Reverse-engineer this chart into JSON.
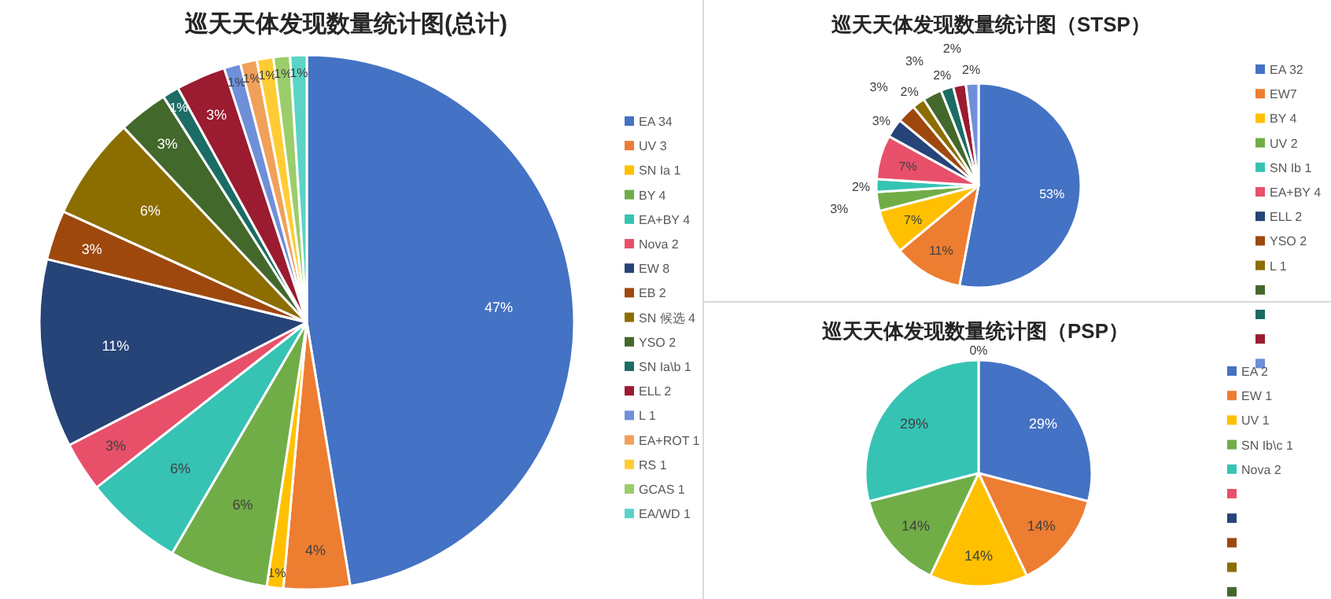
{
  "chart_data": [
    {
      "type": "pie",
      "title": "巡天天体发现数量统计图(总计)",
      "legend": "right",
      "categories": [
        "EA 34",
        "UV 3",
        "SN Ia 1",
        "BY  4",
        "EA+BY 4",
        "Nova 2",
        "EW 8",
        "EB  2",
        "SN 候选 4",
        "YSO 2",
        "SN Ia\\b 1",
        "ELL 2",
        "L  1",
        "EA+ROT 1",
        "RS 1",
        "GCAS 1",
        "EA/WD 1"
      ],
      "values": [
        47.4,
        4,
        1,
        6,
        6,
        3,
        11.4,
        3,
        6.2,
        3,
        1,
        3,
        1,
        1,
        1,
        1,
        1
      ],
      "value_labels": [
        "47%",
        "4%",
        "1%",
        "6%",
        "6%",
        "3%",
        "11%",
        "3%",
        "6%",
        "3%",
        "1%",
        "3%",
        "1%",
        "1%",
        "1%",
        "1%",
        "1%"
      ],
      "colors": [
        "#4472c4",
        "#ed7d31",
        "#ffc000",
        "#70ad47",
        "#36c3b4",
        "#e8506a",
        "#264478",
        "#9e480e",
        "#8c6d00",
        "#43682b",
        "#1b6c64",
        "#9b1b30",
        "#6f8fd8",
        "#f1a05a",
        "#ffcc33",
        "#9bcd6a",
        "#5bd3c7"
      ]
    },
    {
      "type": "pie",
      "title": "巡天天体发现数量统计图（STSP）",
      "legend": "right",
      "categories": [
        "EA 32",
        "EW7",
        "BY 4",
        "UV 2",
        "SN Ib 1",
        "EA+BY 4",
        "ELL 2",
        "YSO 2",
        "L 1",
        null,
        null,
        null,
        null
      ],
      "values": [
        53,
        11,
        7,
        3,
        2,
        7,
        3,
        3,
        2,
        3,
        2,
        2,
        2
      ],
      "value_labels": [
        "53%",
        "11%",
        "7%",
        "3%",
        "2%",
        "7%",
        "3%",
        "3%",
        "2%",
        "3%",
        "2%",
        "2%",
        "2%"
      ],
      "colors": [
        "#4472c4",
        "#ed7d31",
        "#ffc000",
        "#70ad47",
        "#36c3b4",
        "#e8506a",
        "#264478",
        "#9e480e",
        "#8c6d00",
        "#43682b",
        "#1b6c64",
        "#9b1b30",
        "#6f8fd8"
      ]
    },
    {
      "type": "pie",
      "title": "巡天天体发现数量统计图（PSP）",
      "legend": "right",
      "categories": [
        "EA 2",
        "EW 1",
        "UV 1",
        "SN Ib\\c 1",
        "Nova 2",
        null,
        null,
        null,
        null,
        null
      ],
      "values": [
        29,
        14,
        14,
        14,
        29,
        0,
        0,
        0,
        0,
        0
      ],
      "value_labels": [
        "29%",
        "14%",
        "14%",
        "14%",
        "29%",
        "0%",
        null,
        null,
        null,
        null
      ],
      "colors": [
        "#4472c4",
        "#ed7d31",
        "#ffc000",
        "#70ad47",
        "#36c3b4",
        "#e8506a",
        "#264478",
        "#9e480e",
        "#8c6d00",
        "#43682b"
      ]
    }
  ]
}
